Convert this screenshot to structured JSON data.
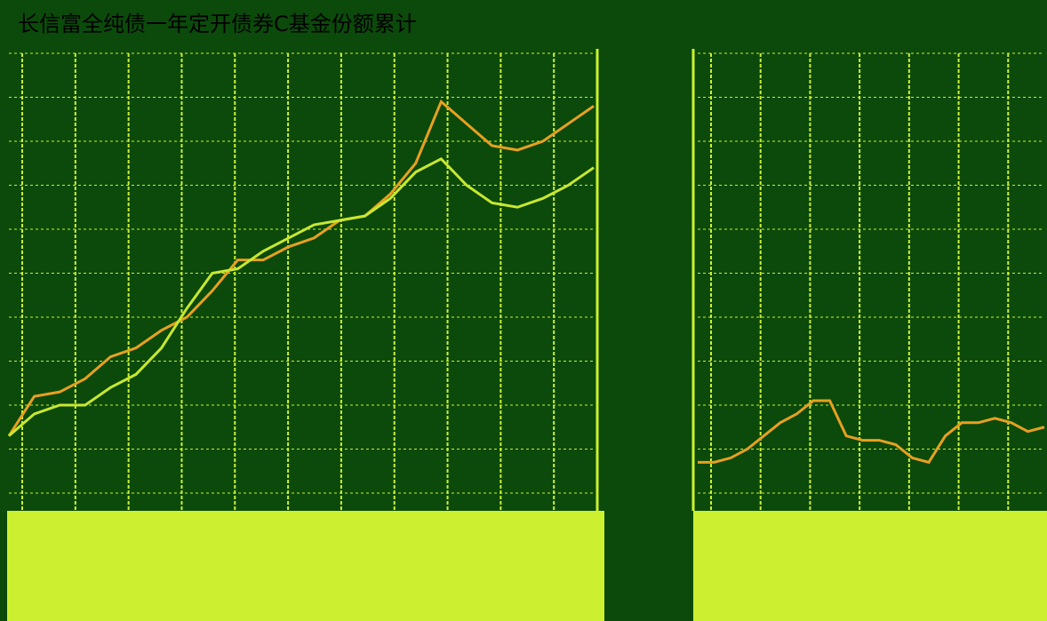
{
  "chart_data": [
    {
      "type": "line",
      "title": "长信富全纯债一年定开债券C基金份额累计",
      "ylim": [
        0,
        100
      ],
      "grid": true,
      "series": [
        {
          "color": "#e8a020",
          "values": [
            13,
            22,
            23,
            26,
            31,
            33,
            37,
            40,
            46,
            53,
            53,
            56,
            58,
            62,
            63,
            68,
            75,
            89,
            84,
            79,
            78,
            80,
            84,
            88
          ]
        },
        {
          "color": "#c8e830",
          "values": [
            13,
            18,
            20,
            20,
            24,
            27,
            33,
            42,
            50,
            51,
            55,
            58,
            61,
            62,
            63,
            67,
            73,
            76,
            70,
            66,
            65,
            67,
            70,
            74
          ]
        }
      ]
    },
    {
      "type": "line",
      "ylim": [
        0,
        100
      ],
      "grid": true,
      "series": [
        {
          "color": "#e8a020",
          "values": [
            7,
            7,
            8,
            10,
            13,
            16,
            18,
            21,
            21,
            13,
            12,
            12,
            11,
            8,
            7,
            13,
            16,
            16,
            17,
            16,
            14,
            15
          ]
        }
      ]
    }
  ]
}
